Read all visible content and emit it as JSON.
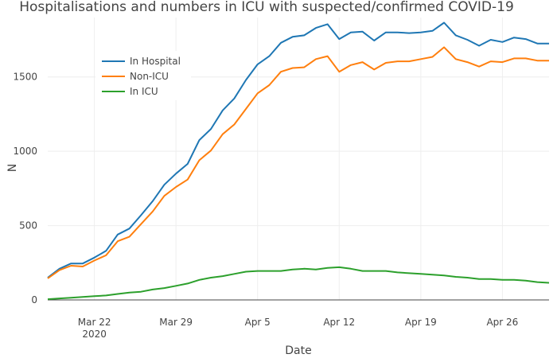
{
  "chart_data": {
    "type": "line",
    "title": "Hospitalisations and numbers in ICU with suspected/confirmed COVID-19",
    "xlabel": "Date",
    "ylabel": "N",
    "ylim": [
      0,
      1900
    ],
    "yticks": [
      0,
      500,
      1000,
      1500
    ],
    "x_start": "2020-03-18",
    "x_end": "2020-04-30",
    "xticks": [
      {
        "date": "2020-03-22",
        "label": "Mar 22",
        "sublabel": "2020"
      },
      {
        "date": "2020-03-29",
        "label": "Mar 29",
        "sublabel": ""
      },
      {
        "date": "2020-04-05",
        "label": "Apr 5",
        "sublabel": ""
      },
      {
        "date": "2020-04-12",
        "label": "Apr 12",
        "sublabel": ""
      },
      {
        "date": "2020-04-19",
        "label": "Apr 19",
        "sublabel": ""
      },
      {
        "date": "2020-04-26",
        "label": "Apr 26",
        "sublabel": ""
      }
    ],
    "legend_position": "top-left",
    "grid": true,
    "x": [
      "2020-03-18",
      "2020-03-19",
      "2020-03-20",
      "2020-03-21",
      "2020-03-22",
      "2020-03-23",
      "2020-03-24",
      "2020-03-25",
      "2020-03-26",
      "2020-03-27",
      "2020-03-28",
      "2020-03-29",
      "2020-03-30",
      "2020-03-31",
      "2020-04-01",
      "2020-04-02",
      "2020-04-03",
      "2020-04-04",
      "2020-04-05",
      "2020-04-06",
      "2020-04-07",
      "2020-04-08",
      "2020-04-09",
      "2020-04-10",
      "2020-04-11",
      "2020-04-12",
      "2020-04-13",
      "2020-04-14",
      "2020-04-15",
      "2020-04-16",
      "2020-04-17",
      "2020-04-18",
      "2020-04-19",
      "2020-04-20",
      "2020-04-21",
      "2020-04-22",
      "2020-04-23",
      "2020-04-24",
      "2020-04-25",
      "2020-04-26",
      "2020-04-27",
      "2020-04-28",
      "2020-04-29",
      "2020-04-30"
    ],
    "series": [
      {
        "name": "In Hospital",
        "color": "#1f77b4",
        "values": [
          150,
          210,
          245,
          245,
          285,
          330,
          440,
          480,
          570,
          665,
          775,
          850,
          915,
          1075,
          1150,
          1275,
          1355,
          1480,
          1585,
          1640,
          1730,
          1770,
          1780,
          1830,
          1855,
          1755,
          1800,
          1805,
          1745,
          1800,
          1800,
          1795,
          1800,
          1810,
          1865,
          1780,
          1750,
          1710,
          1750,
          1735,
          1765,
          1755,
          1725,
          1725
        ]
      },
      {
        "name": "Non-ICU",
        "color": "#ff7f0e",
        "values": [
          145,
          200,
          230,
          225,
          265,
          300,
          395,
          425,
          510,
          595,
          700,
          760,
          810,
          940,
          1005,
          1115,
          1180,
          1285,
          1390,
          1445,
          1535,
          1560,
          1565,
          1620,
          1640,
          1535,
          1580,
          1600,
          1550,
          1595,
          1605,
          1605,
          1620,
          1635,
          1700,
          1620,
          1600,
          1570,
          1605,
          1600,
          1625,
          1625,
          1610,
          1610
        ]
      },
      {
        "name": "In ICU",
        "color": "#2ca02c",
        "values": [
          5,
          10,
          15,
          20,
          25,
          30,
          40,
          50,
          55,
          70,
          80,
          95,
          110,
          135,
          150,
          160,
          175,
          190,
          195,
          195,
          195,
          205,
          210,
          205,
          215,
          220,
          210,
          195,
          195,
          195,
          185,
          180,
          175,
          170,
          165,
          155,
          150,
          140,
          140,
          135,
          135,
          130,
          120,
          115
        ]
      }
    ]
  }
}
